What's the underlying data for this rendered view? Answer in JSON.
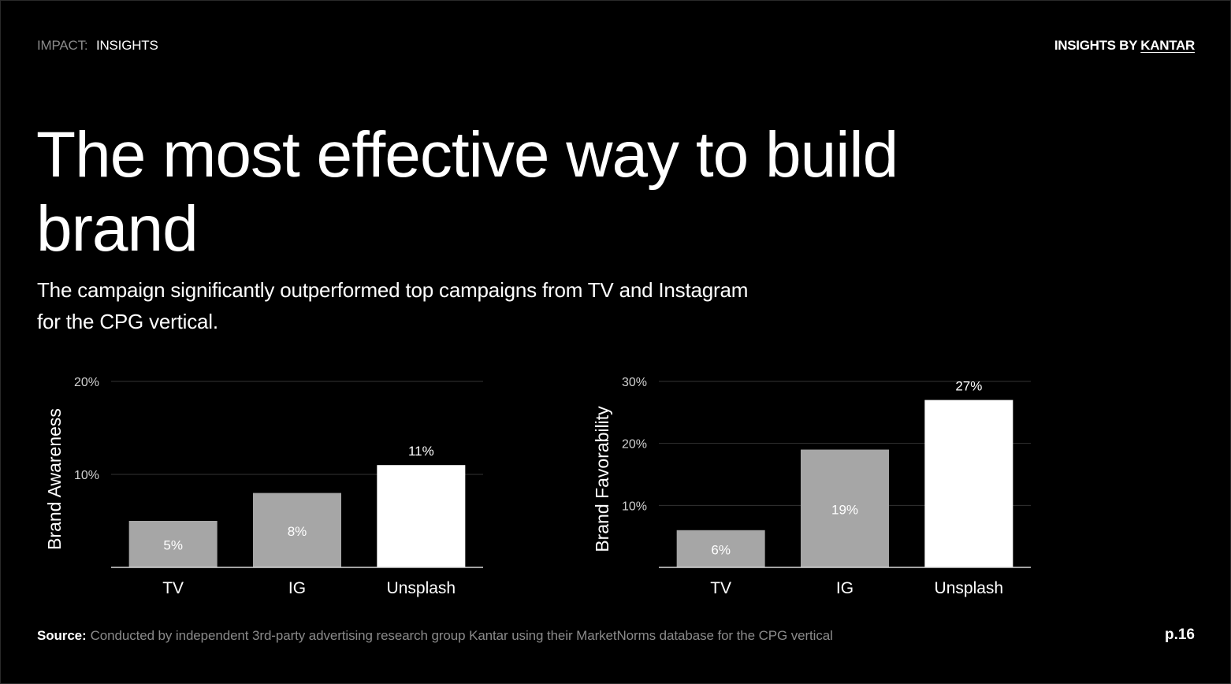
{
  "header": {
    "section": "IMPACT:",
    "current": "INSIGHTS",
    "brand_prefix": "INSIGHTS BY ",
    "brand_link": "KANTAR"
  },
  "title": "The most effective way to build brand",
  "subtitle": "The campaign significantly outperformed top campaigns from TV and Instagram for the CPG vertical.",
  "colors": {
    "background": "#000000",
    "bar_gray": "#a6a6a6",
    "bar_highlight": "#ffffff",
    "gridline": "#333333",
    "muted_text": "#8a8a8a"
  },
  "chart_data": [
    {
      "type": "bar",
      "categories": [
        "TV",
        "IG",
        "Unsplash"
      ],
      "values": [
        5,
        8,
        11
      ],
      "data_labels": [
        "5%",
        "8%",
        "11%"
      ],
      "highlight_index": 2,
      "ylabel": "Brand Awareness",
      "ylim": [
        0,
        20
      ],
      "yticks": [
        10,
        20
      ],
      "ytick_labels": [
        "10%",
        "20%"
      ],
      "grid": true
    },
    {
      "type": "bar",
      "categories": [
        "TV",
        "IG",
        "Unsplash"
      ],
      "values": [
        6,
        19,
        27
      ],
      "data_labels": [
        "6%",
        "19%",
        "27%"
      ],
      "highlight_index": 2,
      "ylabel": "Brand Favorability",
      "ylim": [
        0,
        30
      ],
      "yticks": [
        10,
        20,
        30
      ],
      "ytick_labels": [
        "10%",
        "20%",
        "30%"
      ],
      "grid": true
    }
  ],
  "footer": {
    "source_label": "Source:",
    "source_text": "Conducted by independent 3rd-party advertising research group Kantar using their MarketNorms database for the CPG vertical",
    "page": "p.16"
  }
}
